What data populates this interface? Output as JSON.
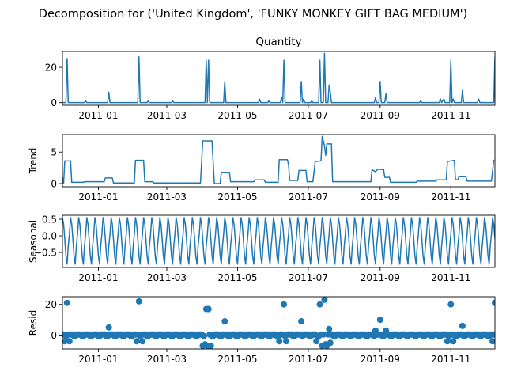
{
  "figure": {
    "suptitle": "Decomposition for ('United Kingdom', 'FUNKY MONKEY GIFT BAG MEDIUM')"
  },
  "chart_data": [
    {
      "type": "line",
      "title": "Quantity",
      "ylabel": "",
      "series_color": "#1f77b4",
      "xlim": [
        "2010-12-01",
        "2011-12-09"
      ],
      "ylim": [
        -1.5,
        29
      ],
      "yticks": [
        0,
        20
      ],
      "xticks": [
        "2011-01",
        "2011-03",
        "2011-05",
        "2011-07",
        "2011-09",
        "2011-11"
      ],
      "grid": false,
      "points": [
        [
          "2010-12-01",
          0
        ],
        [
          "2010-12-04",
          0
        ],
        [
          "2010-12-05",
          25
        ],
        [
          "2010-12-06",
          0
        ],
        [
          "2010-12-20",
          0
        ],
        [
          "2010-12-21",
          1
        ],
        [
          "2010-12-22",
          0
        ],
        [
          "2011-01-09",
          0
        ],
        [
          "2011-01-10",
          6
        ],
        [
          "2011-01-11",
          0
        ],
        [
          "2011-02-04",
          0
        ],
        [
          "2011-02-05",
          26
        ],
        [
          "2011-02-06",
          0
        ],
        [
          "2011-02-12",
          0
        ],
        [
          "2011-02-13",
          1
        ],
        [
          "2011-02-14",
          0
        ],
        [
          "2011-03-05",
          0
        ],
        [
          "2011-03-06",
          1
        ],
        [
          "2011-03-07",
          0
        ],
        [
          "2011-04-03",
          0
        ],
        [
          "2011-04-04",
          24
        ],
        [
          "2011-04-05",
          0
        ],
        [
          "2011-04-06",
          24
        ],
        [
          "2011-04-07",
          0
        ],
        [
          "2011-04-19",
          0
        ],
        [
          "2011-04-20",
          12
        ],
        [
          "2011-04-21",
          0
        ],
        [
          "2011-05-19",
          0
        ],
        [
          "2011-05-20",
          2
        ],
        [
          "2011-05-21",
          0
        ],
        [
          "2011-05-27",
          0
        ],
        [
          "2011-05-28",
          1
        ],
        [
          "2011-05-29",
          0
        ],
        [
          "2011-06-07",
          0
        ],
        [
          "2011-06-08",
          3
        ],
        [
          "2011-06-09",
          0
        ],
        [
          "2011-06-10",
          24
        ],
        [
          "2011-06-11",
          0
        ],
        [
          "2011-06-24",
          0
        ],
        [
          "2011-06-25",
          12
        ],
        [
          "2011-06-26",
          0
        ],
        [
          "2011-06-27",
          2
        ],
        [
          "2011-06-28",
          0
        ],
        [
          "2011-07-03",
          0
        ],
        [
          "2011-07-04",
          1
        ],
        [
          "2011-07-05",
          0
        ],
        [
          "2011-07-10",
          0
        ],
        [
          "2011-07-11",
          24
        ],
        [
          "2011-07-12",
          0
        ],
        [
          "2011-07-14",
          0
        ],
        [
          "2011-07-15",
          28
        ],
        [
          "2011-07-16",
          0
        ],
        [
          "2011-07-18",
          0
        ],
        [
          "2011-07-19",
          10
        ],
        [
          "2011-07-20",
          6
        ],
        [
          "2011-07-21",
          0
        ],
        [
          "2011-08-27",
          0
        ],
        [
          "2011-08-28",
          3
        ],
        [
          "2011-08-29",
          0
        ],
        [
          "2011-08-31",
          0
        ],
        [
          "2011-09-01",
          12
        ],
        [
          "2011-09-02",
          0
        ],
        [
          "2011-09-05",
          0
        ],
        [
          "2011-09-06",
          5
        ],
        [
          "2011-09-07",
          0
        ],
        [
          "2011-10-05",
          0
        ],
        [
          "2011-10-06",
          1
        ],
        [
          "2011-10-07",
          0
        ],
        [
          "2011-10-22",
          0
        ],
        [
          "2011-10-23",
          2
        ],
        [
          "2011-10-24",
          0
        ],
        [
          "2011-10-26",
          2
        ],
        [
          "2011-10-27",
          0
        ],
        [
          "2011-10-31",
          0
        ],
        [
          "2011-11-01",
          24
        ],
        [
          "2011-11-02",
          0
        ],
        [
          "2011-11-03",
          2
        ],
        [
          "2011-11-04",
          0
        ],
        [
          "2011-11-10",
          0
        ],
        [
          "2011-11-11",
          7
        ],
        [
          "2011-11-12",
          0
        ],
        [
          "2011-11-24",
          0
        ],
        [
          "2011-11-25",
          2
        ],
        [
          "2011-11-26",
          0
        ],
        [
          "2011-12-08",
          0
        ],
        [
          "2011-12-09",
          26
        ]
      ]
    },
    {
      "type": "line",
      "title": "",
      "ylabel": "Trend",
      "series_color": "#1f77b4",
      "xlim": [
        "2010-12-01",
        "2011-12-09"
      ],
      "ylim": [
        -0.5,
        7.8
      ],
      "yticks": [
        0,
        5
      ],
      "xticks": [
        "2011-01",
        "2011-03",
        "2011-05",
        "2011-07",
        "2011-09",
        "2011-11"
      ],
      "grid": false,
      "points": [
        [
          "2010-12-01",
          1
        ],
        [
          "2010-12-02",
          0
        ],
        [
          "2010-12-03",
          3.6
        ],
        [
          "2010-12-08",
          3.6
        ],
        [
          "2010-12-09",
          0.2
        ],
        [
          "2010-12-19",
          0.2
        ],
        [
          "2010-12-20",
          0.3
        ],
        [
          "2011-01-06",
          0.3
        ],
        [
          "2011-01-07",
          0.9
        ],
        [
          "2011-01-13",
          0.9
        ],
        [
          "2011-01-14",
          0.1
        ],
        [
          "2011-02-01",
          0.1
        ],
        [
          "2011-02-02",
          3.7
        ],
        [
          "2011-02-09",
          3.7
        ],
        [
          "2011-02-10",
          0.3
        ],
        [
          "2011-02-17",
          0.3
        ],
        [
          "2011-02-18",
          0.1
        ],
        [
          "2011-03-30",
          0.1
        ],
        [
          "2011-03-31",
          3.4
        ],
        [
          "2011-04-01",
          6.8
        ],
        [
          "2011-04-09",
          6.8
        ],
        [
          "2011-04-10",
          3.4
        ],
        [
          "2011-04-11",
          0
        ],
        [
          "2011-04-16",
          0
        ],
        [
          "2011-04-17",
          1.8
        ],
        [
          "2011-04-24",
          1.8
        ],
        [
          "2011-04-25",
          0.3
        ],
        [
          "2011-05-15",
          0.3
        ],
        [
          "2011-05-16",
          0.6
        ],
        [
          "2011-05-24",
          0.6
        ],
        [
          "2011-05-25",
          0.2
        ],
        [
          "2011-06-05",
          0.2
        ],
        [
          "2011-06-06",
          3.8
        ],
        [
          "2011-06-13",
          3.8
        ],
        [
          "2011-06-14",
          3
        ],
        [
          "2011-06-15",
          0.5
        ],
        [
          "2011-06-22",
          0.5
        ],
        [
          "2011-06-23",
          2.1
        ],
        [
          "2011-06-29",
          2.1
        ],
        [
          "2011-06-30",
          0.3
        ],
        [
          "2011-07-05",
          0.3
        ],
        [
          "2011-07-07",
          3.5
        ],
        [
          "2011-07-12",
          3.6
        ],
        [
          "2011-07-13",
          7.5
        ],
        [
          "2011-07-15",
          6
        ],
        [
          "2011-07-16",
          4.5
        ],
        [
          "2011-07-17",
          6.3
        ],
        [
          "2011-07-21",
          6.3
        ],
        [
          "2011-07-22",
          0.3
        ],
        [
          "2011-08-24",
          0.3
        ],
        [
          "2011-08-25",
          2.2
        ],
        [
          "2011-08-28",
          1.9
        ],
        [
          "2011-08-30",
          2.3
        ],
        [
          "2011-09-04",
          2.2
        ],
        [
          "2011-09-05",
          1
        ],
        [
          "2011-09-09",
          1
        ],
        [
          "2011-09-10",
          0.2
        ],
        [
          "2011-10-02",
          0.2
        ],
        [
          "2011-10-03",
          0.4
        ],
        [
          "2011-10-19",
          0.4
        ],
        [
          "2011-10-20",
          0.6
        ],
        [
          "2011-10-28",
          0.6
        ],
        [
          "2011-10-29",
          3.5
        ],
        [
          "2011-11-04",
          3.7
        ],
        [
          "2011-11-05",
          0.6
        ],
        [
          "2011-11-07",
          0.6
        ],
        [
          "2011-11-08",
          1.1
        ],
        [
          "2011-11-14",
          1.1
        ],
        [
          "2011-11-15",
          0.4
        ],
        [
          "2011-12-06",
          0.4
        ],
        [
          "2011-12-08",
          3.8
        ]
      ]
    },
    {
      "type": "line",
      "title": "",
      "ylabel": "Seasonal",
      "series_color": "#1f77b4",
      "xlim": [
        "2010-12-01",
        "2011-12-09"
      ],
      "ylim": [
        -0.95,
        0.62
      ],
      "yticks": [
        0.5,
        0.0,
        -0.5
      ],
      "ytick_labels": [
        "0.5",
        "0.0",
        "−0.5"
      ],
      "xticks": [
        "2011-01",
        "2011-03",
        "2011-05",
        "2011-07",
        "2011-09",
        "2011-11"
      ],
      "grid": false,
      "period_days": 7,
      "start": "2010-12-01",
      "end": "2011-12-09",
      "weekly_values": [
        0.55,
        0.35,
        -0.1,
        -0.6,
        -0.85,
        -0.3,
        0.05
      ]
    },
    {
      "type": "scatter",
      "title": "",
      "ylabel": "Resid",
      "series_color": "#1f77b4",
      "zero_line_color": "#000000",
      "xlim": [
        "2010-12-01",
        "2011-12-09"
      ],
      "ylim": [
        -9,
        25
      ],
      "yticks": [
        0,
        20
      ],
      "xticks": [
        "2011-01",
        "2011-03",
        "2011-05",
        "2011-07",
        "2011-09",
        "2011-11"
      ],
      "grid": false,
      "start": "2010-12-01",
      "end": "2011-12-09",
      "outliers": [
        [
          "2010-12-05",
          21
        ],
        [
          "2011-01-10",
          5
        ],
        [
          "2011-02-05",
          22
        ],
        [
          "2011-04-04",
          17
        ],
        [
          "2011-04-06",
          17
        ],
        [
          "2011-04-20",
          9
        ],
        [
          "2011-06-10",
          20
        ],
        [
          "2011-06-25",
          9
        ],
        [
          "2011-07-11",
          20
        ],
        [
          "2011-07-15",
          23
        ],
        [
          "2011-07-19",
          4
        ],
        [
          "2011-08-28",
          3
        ],
        [
          "2011-09-01",
          10
        ],
        [
          "2011-09-06",
          3
        ],
        [
          "2011-11-01",
          20
        ],
        [
          "2011-11-11",
          6
        ],
        [
          "2011-12-09",
          21
        ],
        [
          "2010-12-03",
          -4
        ],
        [
          "2010-12-07",
          -4
        ],
        [
          "2011-02-03",
          -4
        ],
        [
          "2011-02-08",
          -4
        ],
        [
          "2011-04-01",
          -7
        ],
        [
          "2011-04-03",
          -6
        ],
        [
          "2011-04-05",
          -7
        ],
        [
          "2011-04-08",
          -7
        ],
        [
          "2011-06-06",
          -4
        ],
        [
          "2011-06-12",
          -4
        ],
        [
          "2011-07-08",
          -4
        ],
        [
          "2011-07-13",
          -7
        ],
        [
          "2011-07-16",
          -6
        ],
        [
          "2011-07-17",
          -7
        ],
        [
          "2011-07-20",
          -5
        ],
        [
          "2011-10-29",
          -4
        ],
        [
          "2011-11-03",
          -4
        ],
        [
          "2011-12-07",
          -4
        ]
      ]
    }
  ]
}
